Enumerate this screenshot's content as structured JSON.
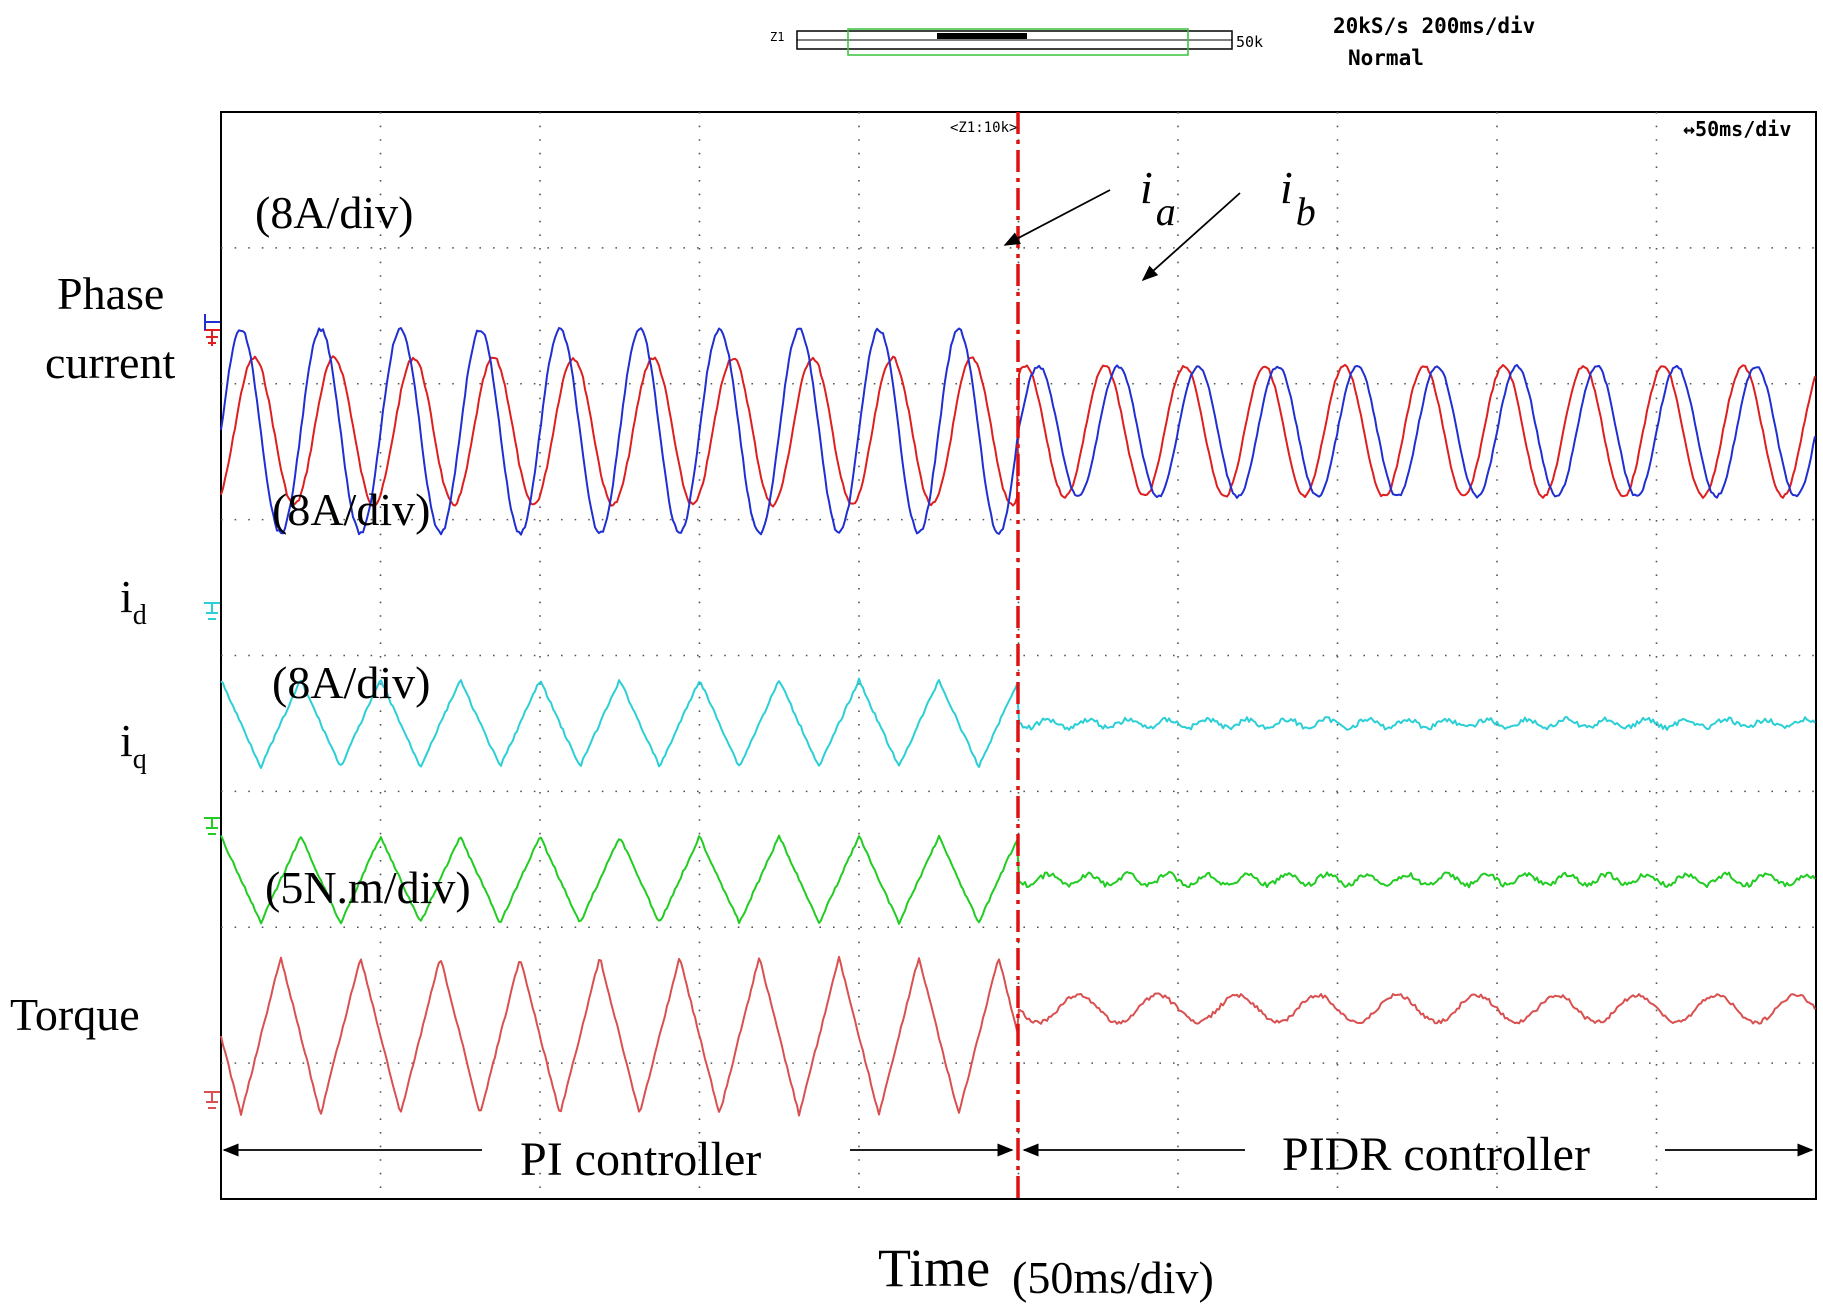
{
  "header": {
    "zoom_left_label": "Z1",
    "zoom_right_label": "50k",
    "sample_rate": "20kS/s 200ms/div",
    "trigger_mode": "Normal",
    "zoom_ratio": "<Z1:10k>",
    "timebase": "↔50ms/div"
  },
  "axis": {
    "xlabel": "Time",
    "xunit": "(50ms/div)"
  },
  "channels": {
    "phase_current": {
      "label_line1": "Phase",
      "label_line2": "current",
      "scale": "(8A/div)"
    },
    "id": {
      "label_main": "i",
      "label_sub": "d",
      "scale": "(8A/div)"
    },
    "iq": {
      "label_main": "i",
      "label_sub": "q",
      "scale": "(8A/div)"
    },
    "torque": {
      "label": "Torque",
      "scale": "(5N.m/div)"
    }
  },
  "annotations": {
    "ia_main": "i",
    "ia_sub": "a",
    "ib_main": "i",
    "ib_sub": "b",
    "pi_label": "PI  controller",
    "pidr_label": "PIDR  controller"
  },
  "colors": {
    "ia": "#dd1f1f",
    "ib": "#1f2fd0",
    "id": "#2ccfd6",
    "iq": "#22cc22",
    "torque": "#d95050",
    "switch_line": "#e01010"
  },
  "chart_data": {
    "type": "line",
    "title": "",
    "xlabel": "Time (50ms/div)",
    "x_divisions": 10,
    "y_divisions": 8,
    "switch_at_div": 5,
    "series": [
      {
        "name": "ia",
        "unit": "A",
        "scale_per_div": 8,
        "cycles_per_div": 2,
        "pi": {
          "center_div": 2.35,
          "amplitude_div": 0.75,
          "phase_deg": 300
        },
        "pidr": {
          "center_div": 2.35,
          "amplitude_div": 0.48,
          "phase_deg": 60
        }
      },
      {
        "name": "ib",
        "unit": "A",
        "scale_per_div": 8,
        "cycles_per_div": 2,
        "pi": {
          "center_div": 2.35,
          "amplitude_div": 0.75,
          "phase_deg": 0
        },
        "pidr": {
          "center_div": 2.35,
          "amplitude_div": 0.48,
          "phase_deg": 0
        }
      },
      {
        "name": "id",
        "unit": "A",
        "scale_per_div": 8,
        "cycles_per_div": 2,
        "pi": {
          "center_div": 4.5,
          "amplitude_div": 0.32
        },
        "pidr": {
          "center_div": 4.5,
          "amplitude_div": 0.03
        }
      },
      {
        "name": "iq",
        "unit": "A",
        "scale_per_div": 8,
        "cycles_per_div": 2,
        "pi": {
          "center_div": 5.65,
          "amplitude_div": 0.32
        },
        "pidr": {
          "center_div": 5.65,
          "amplitude_div": 0.04
        }
      },
      {
        "name": "torque",
        "unit": "N.m",
        "scale_per_div": 5,
        "cycles_per_div": 2,
        "pi": {
          "center_div": 6.8,
          "amplitude_div": 0.58
        },
        "pidr": {
          "center_div": 6.6,
          "amplitude_div": 0.1
        }
      }
    ]
  }
}
